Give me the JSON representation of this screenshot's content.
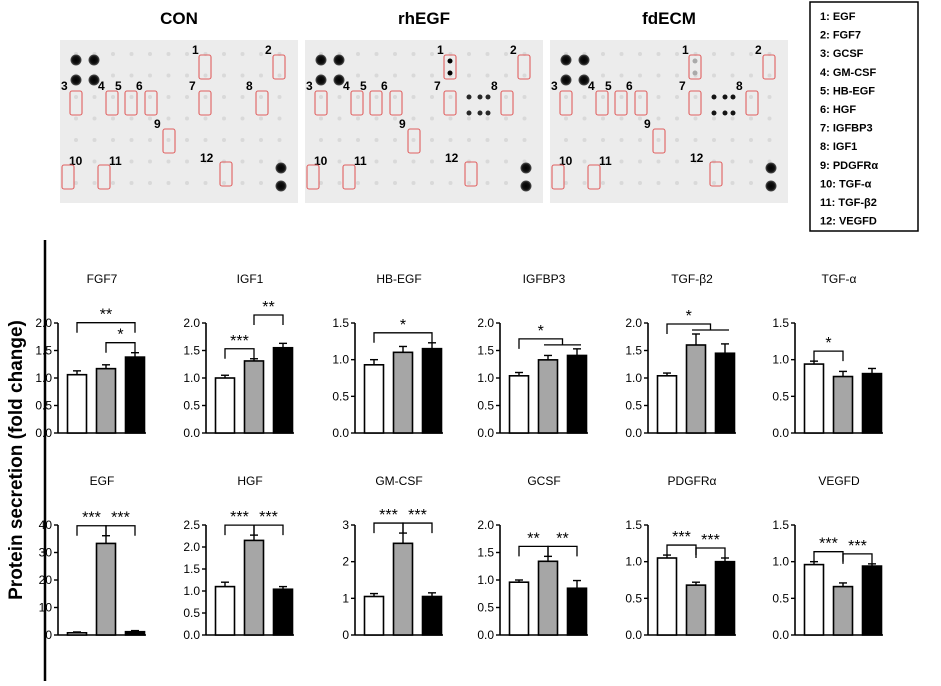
{
  "membranes": [
    {
      "title": "CON",
      "intensity": {
        "1": 0,
        "7": 0,
        "8": 0
      }
    },
    {
      "title": "rhEGF",
      "intensity": {
        "1": 1,
        "7": 0.8,
        "8": 0.8
      }
    },
    {
      "title": "fdECM",
      "intensity": {
        "1": 0.15,
        "7": 0.9,
        "8": 0.9
      }
    }
  ],
  "spot_labels": [
    "1",
    "2",
    "3",
    "4",
    "5",
    "6",
    "7",
    "8",
    "9",
    "10",
    "11",
    "12"
  ],
  "legend": {
    "items": [
      "1: EGF",
      "2: FGF7",
      "3: GCSF",
      "4: GM-CSF",
      "5: HB-EGF",
      "6: HGF",
      "7: IGFBP3",
      "8: IGF1",
      "9: PDGFRα",
      "10: TGF-α",
      "11: TGF-β2",
      "12: VEGFD"
    ]
  },
  "y_axis_label": "Protein secretion (fold change)",
  "groups": [
    "CON",
    "rhEGF",
    "fdECM"
  ],
  "colors": {
    "CON": "#ffffff",
    "rhEGF": "#a6a6a6",
    "fdECM": "#000000",
    "highlight": "#e06060"
  },
  "chart_data": [
    {
      "type": "bar",
      "title": "FGF7",
      "categories": [
        "CON",
        "rhEGF",
        "fdECM"
      ],
      "values": [
        1.06,
        1.17,
        1.38
      ],
      "errors": [
        0.07,
        0.07,
        0.08
      ],
      "ylim": [
        0,
        2.0
      ],
      "ticks": [
        "0.0",
        "0.5",
        "1.0",
        "1.5",
        "2.0"
      ],
      "significance": [
        {
          "from": 0,
          "to": 2,
          "text": "**",
          "level": 1
        },
        {
          "from": 1,
          "to": 2,
          "text": "*",
          "level": 0
        }
      ]
    },
    {
      "type": "bar",
      "title": "IGF1",
      "categories": [
        "CON",
        "rhEGF",
        "fdECM"
      ],
      "values": [
        1.0,
        1.31,
        1.55
      ],
      "errors": [
        0.05,
        0.04,
        0.08
      ],
      "ylim": [
        0,
        2.0
      ],
      "ticks": [
        "0.0",
        "0.5",
        "1.0",
        "1.5",
        "2.0"
      ],
      "significance": [
        {
          "from": 0,
          "to": 1,
          "text": "***",
          "level": 0
        },
        {
          "from": 1,
          "to": 2,
          "text": "**",
          "level": 1
        }
      ]
    },
    {
      "type": "bar",
      "title": "HB-EGF",
      "categories": [
        "CON",
        "rhEGF",
        "fdECM"
      ],
      "values": [
        0.93,
        1.1,
        1.15
      ],
      "errors": [
        0.07,
        0.08,
        0.08
      ],
      "ylim": [
        0,
        1.5
      ],
      "ticks": [
        "0.0",
        "0.5",
        "1.0",
        "1.5"
      ],
      "significance": [
        {
          "from": 0,
          "to": 2,
          "text": "*",
          "level": 0
        }
      ]
    },
    {
      "type": "bar",
      "title": "IGFBP3",
      "categories": [
        "CON",
        "rhEGF",
        "fdECM"
      ],
      "values": [
        1.04,
        1.33,
        1.41
      ],
      "errors": [
        0.06,
        0.08,
        0.12
      ],
      "ylim": [
        0,
        2.0
      ],
      "ticks": [
        "0.0",
        "0.5",
        "1.0",
        "1.5",
        "2.0"
      ],
      "significance": [
        {
          "from": 0,
          "to": [
            1,
            2
          ],
          "text": "*",
          "level": 0
        }
      ]
    },
    {
      "type": "bar",
      "title": "TGF-β2",
      "categories": [
        "CON",
        "rhEGF",
        "fdECM"
      ],
      "values": [
        1.04,
        1.6,
        1.45
      ],
      "errors": [
        0.05,
        0.2,
        0.17
      ],
      "ylim": [
        0,
        2.0
      ],
      "ticks": [
        "0.0",
        "0.5",
        "1.0",
        "1.5",
        "2.0"
      ],
      "significance": [
        {
          "from": 0,
          "to": [
            1,
            2
          ],
          "text": "*",
          "level": 0
        }
      ]
    },
    {
      "type": "bar",
      "title": "TGF-α",
      "categories": [
        "CON",
        "rhEGF",
        "fdECM"
      ],
      "values": [
        0.94,
        0.77,
        0.81
      ],
      "errors": [
        0.04,
        0.07,
        0.07
      ],
      "ylim": [
        0,
        1.5
      ],
      "ticks": [
        "0.0",
        "0.5",
        "1.0",
        "1.5"
      ],
      "significance": [
        {
          "from": 0,
          "to": 1,
          "text": "*",
          "level": 0
        }
      ]
    },
    {
      "type": "bar",
      "title": "EGF",
      "categories": [
        "CON",
        "rhEGF",
        "fdECM"
      ],
      "values": [
        0.8,
        33.3,
        1.2
      ],
      "errors": [
        0.3,
        2.8,
        0.4
      ],
      "ylim": [
        0,
        40
      ],
      "ticks": [
        "0",
        "10",
        "20",
        "30",
        "40"
      ],
      "significance": [
        {
          "from": 0,
          "to": 1,
          "text": "***",
          "level": 0
        },
        {
          "from": 1,
          "to": 2,
          "text": "***",
          "level": 0
        }
      ]
    },
    {
      "type": "bar",
      "title": "HGF",
      "categories": [
        "CON",
        "rhEGF",
        "fdECM"
      ],
      "values": [
        1.1,
        2.15,
        1.04
      ],
      "errors": [
        0.1,
        0.12,
        0.06
      ],
      "ylim": [
        0,
        2.5
      ],
      "ticks": [
        "0.0",
        "0.5",
        "1.0",
        "1.5",
        "2.0",
        "2.5"
      ],
      "significance": [
        {
          "from": 0,
          "to": 1,
          "text": "***",
          "level": 0
        },
        {
          "from": 1,
          "to": 2,
          "text": "***",
          "level": 0
        }
      ]
    },
    {
      "type": "bar",
      "title": "GM-CSF",
      "categories": [
        "CON",
        "rhEGF",
        "fdECM"
      ],
      "values": [
        1.05,
        2.5,
        1.05
      ],
      "errors": [
        0.08,
        0.28,
        0.1
      ],
      "ylim": [
        0,
        3
      ],
      "ticks": [
        "0",
        "1",
        "2",
        "3"
      ],
      "significance": [
        {
          "from": 0,
          "to": 1,
          "text": "***",
          "level": 0
        },
        {
          "from": 1,
          "to": 2,
          "text": "***",
          "level": 0
        }
      ]
    },
    {
      "type": "bar",
      "title": "GCSF",
      "categories": [
        "CON",
        "rhEGF",
        "fdECM"
      ],
      "values": [
        0.96,
        1.34,
        0.85
      ],
      "errors": [
        0.04,
        0.09,
        0.14
      ],
      "ylim": [
        0,
        2.0
      ],
      "ticks": [
        "0.0",
        "0.5",
        "1.0",
        "1.5",
        "2.0"
      ],
      "significance": [
        {
          "from": 0,
          "to": 1,
          "text": "**",
          "level": 0
        },
        {
          "from": 1,
          "to": 2,
          "text": "**",
          "level": 0
        }
      ]
    },
    {
      "type": "bar",
      "title": "PDGFRα",
      "categories": [
        "CON",
        "rhEGF",
        "fdECM"
      ],
      "values": [
        1.05,
        0.68,
        1.0
      ],
      "errors": [
        0.04,
        0.04,
        0.05
      ],
      "ylim": [
        0,
        1.5
      ],
      "ticks": [
        "0.0",
        "0.5",
        "1.0",
        "1.5"
      ],
      "significance": [
        {
          "from": 0,
          "to": 1,
          "text": "***",
          "level": 0
        },
        {
          "from": 1,
          "to": 2,
          "text": "***",
          "level": 0
        }
      ]
    },
    {
      "type": "bar",
      "title": "VEGFD",
      "categories": [
        "CON",
        "rhEGF",
        "fdECM"
      ],
      "values": [
        0.96,
        0.66,
        0.94
      ],
      "errors": [
        0.04,
        0.05,
        0.03
      ],
      "ylim": [
        0,
        1.5
      ],
      "ticks": [
        "0.0",
        "0.5",
        "1.0",
        "1.5"
      ],
      "significance": [
        {
          "from": 0,
          "to": 1,
          "text": "***",
          "level": 0
        },
        {
          "from": 1,
          "to": 2,
          "text": "***",
          "level": 0
        }
      ]
    }
  ]
}
